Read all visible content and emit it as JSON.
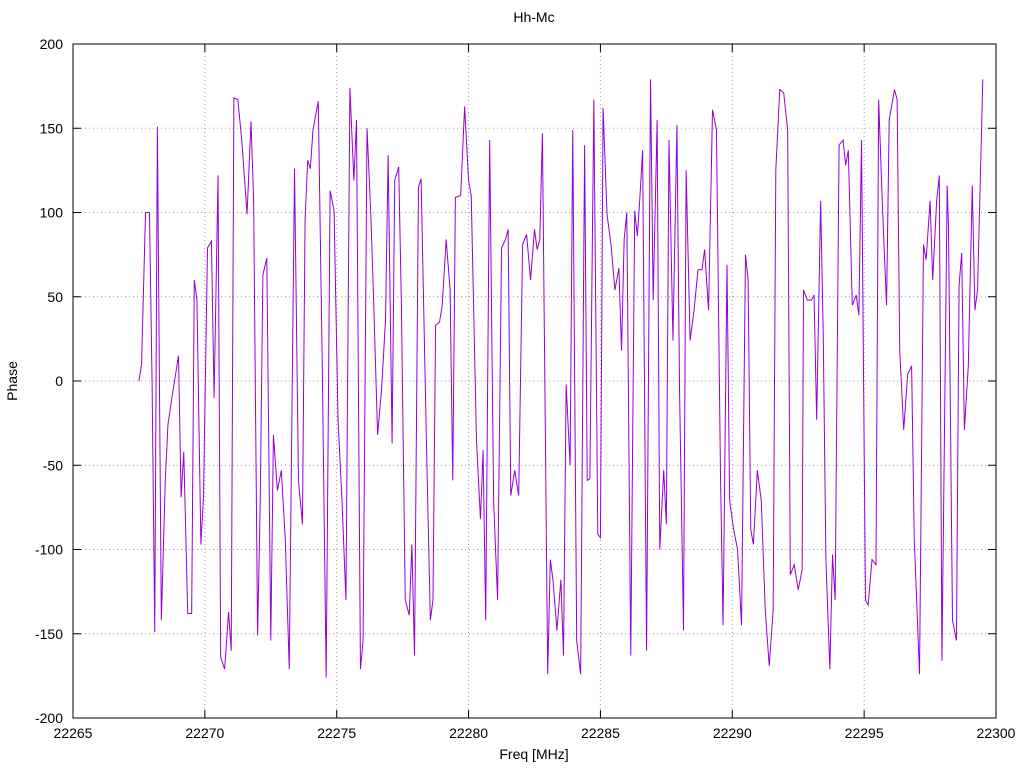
{
  "chart_data": {
    "type": "line",
    "title": "Hh-Mc",
    "x_label": "Freq [MHz]",
    "y_label": "Phase",
    "xlim": [
      22265,
      22300
    ],
    "xticks": [
      22265,
      22270,
      22275,
      22280,
      22285,
      22290,
      22295,
      22300
    ],
    "ylim": [
      -200,
      200
    ],
    "yticks": [
      -200,
      -150,
      -100,
      -50,
      0,
      50,
      100,
      150,
      200
    ],
    "grid": true,
    "x": [
      22267.5,
      22267.6,
      22267.75,
      22267.9,
      22268.0,
      22268.1,
      22268.2,
      22268.35,
      22268.5,
      22268.6,
      22268.75,
      22269.0,
      22269.1,
      22269.2,
      22269.35,
      22269.5,
      22269.6,
      22269.7,
      22269.85,
      22269.95,
      22270.1,
      22270.25,
      22270.35,
      22270.5,
      22270.6,
      22270.75,
      22270.9,
      22271.0,
      22271.1,
      22271.25,
      22271.4,
      22271.6,
      22271.75,
      22271.85,
      22272.0,
      22272.1,
      22272.2,
      22272.35,
      22272.5,
      22272.6,
      22272.75,
      22272.9,
      22273.05,
      22273.2,
      22273.4,
      22273.55,
      22273.7,
      22273.8,
      22273.9,
      22274.0,
      22274.1,
      22274.3,
      22274.45,
      22274.6,
      22274.75,
      22274.9,
      22275.05,
      22275.2,
      22275.35,
      22275.5,
      22275.65,
      22275.75,
      22275.9,
      22276.0,
      22276.15,
      22276.3,
      22276.4,
      22276.55,
      22276.7,
      22276.85,
      22276.95,
      22277.1,
      22277.2,
      22277.35,
      22277.45,
      22277.6,
      22277.75,
      22277.85,
      22277.95,
      22278.1,
      22278.2,
      22278.4,
      22278.55,
      22278.65,
      22278.75,
      22278.9,
      22279.0,
      22279.15,
      22279.3,
      22279.4,
      22279.5,
      22279.7,
      22279.85,
      22280.0,
      22280.1,
      22280.3,
      22280.45,
      22280.55,
      22280.65,
      22280.8,
      22280.95,
      22281.1,
      22281.25,
      22281.4,
      22281.5,
      22281.6,
      22281.75,
      22281.9,
      22282.05,
      22282.2,
      22282.35,
      22282.5,
      22282.6,
      22282.7,
      22282.8,
      22283.0,
      22283.1,
      22283.2,
      22283.35,
      22283.5,
      22283.6,
      22283.7,
      22283.85,
      22283.95,
      22284.1,
      22284.25,
      22284.4,
      22284.5,
      22284.6,
      22284.75,
      22284.9,
      22285.0,
      22285.1,
      22285.25,
      22285.4,
      22285.55,
      22285.7,
      22285.8,
      22285.9,
      22286.0,
      22286.15,
      22286.3,
      22286.4,
      22286.5,
      22286.6,
      22286.75,
      22286.9,
      22287.0,
      22287.15,
      22287.25,
      22287.4,
      22287.5,
      22287.6,
      22287.75,
      22287.9,
      22288.0,
      22288.15,
      22288.25,
      22288.4,
      22288.55,
      22288.7,
      22288.85,
      22288.95,
      22289.1,
      22289.25,
      22289.4,
      22289.55,
      22289.65,
      22289.8,
      22289.9,
      22290.05,
      22290.2,
      22290.35,
      22290.5,
      22290.6,
      22290.7,
      22290.8,
      22290.95,
      22291.1,
      22291.25,
      22291.4,
      22291.55,
      22291.65,
      22291.8,
      22291.95,
      22292.1,
      22292.2,
      22292.35,
      22292.5,
      22292.65,
      22292.7,
      22292.85,
      22293.0,
      22293.1,
      22293.2,
      22293.35,
      22293.45,
      22293.55,
      22293.7,
      22293.8,
      22293.9,
      22294.05,
      22294.2,
      22294.3,
      22294.4,
      22294.55,
      22294.7,
      22294.8,
      22294.9,
      22295.05,
      22295.15,
      22295.3,
      22295.45,
      22295.55,
      22295.7,
      22295.85,
      22295.95,
      22296.15,
      22296.25,
      22296.35,
      22296.5,
      22296.65,
      22296.8,
      22296.9,
      22297.1,
      22297.25,
      22297.35,
      22297.5,
      22297.6,
      22297.75,
      22297.85,
      22297.95,
      22298.15,
      22298.2,
      22298.35,
      22298.5,
      22298.6,
      22298.7,
      22298.8,
      22298.95,
      22299.1,
      22299.2,
      22299.3,
      22299.5
    ],
    "series": [
      {
        "color": "#9400d3",
        "values": [
          0,
          10,
          100,
          100,
          -2,
          -149,
          151,
          -142,
          -59,
          -26,
          -10,
          15,
          -69,
          -42,
          -138,
          -138,
          60,
          48,
          -97,
          -68,
          79,
          83,
          -10,
          122,
          -164,
          -171,
          -137,
          -160,
          168,
          167,
          143,
          99,
          154,
          107,
          -151,
          -71,
          63,
          73,
          -154,
          -32,
          -65,
          -53,
          -94,
          -171,
          126,
          -59,
          -85,
          96,
          131,
          126,
          149,
          166,
          12,
          -176,
          113,
          101,
          -23,
          -71,
          -130,
          174,
          119,
          155,
          -171,
          -154,
          150,
          96,
          48,
          -32,
          -5,
          36,
          134,
          -37,
          119,
          127,
          48,
          -130,
          -139,
          -97,
          -163,
          115,
          120,
          -35,
          -142,
          -130,
          33,
          35,
          45,
          84,
          54,
          -59,
          109,
          110,
          163,
          119,
          110,
          -35,
          -82,
          -41,
          -142,
          143,
          -71,
          -130,
          79,
          84,
          90,
          -68,
          -53,
          -68,
          81,
          87,
          60,
          90,
          78,
          84,
          147,
          -174,
          -106,
          -118,
          -148,
          -118,
          -163,
          -2,
          -50,
          149,
          -154,
          -174,
          140,
          -59,
          -58,
          167,
          -91,
          -93,
          162,
          99,
          81,
          54,
          67,
          18,
          84,
          100,
          -163,
          101,
          86,
          110,
          137,
          -160,
          179,
          48,
          155,
          -100,
          -53,
          -85,
          143,
          24,
          152,
          -5,
          -148,
          125,
          24,
          42,
          66,
          66,
          78,
          42,
          161,
          149,
          -53,
          -145,
          69,
          -71,
          -88,
          -100,
          -145,
          75,
          60,
          -88,
          -97,
          -53,
          -71,
          -136,
          -169,
          -136,
          125,
          173,
          171,
          149,
          -115,
          -109,
          -124,
          -112,
          54,
          48,
          48,
          51,
          -23,
          107,
          27,
          -106,
          -171,
          -103,
          -130,
          140,
          143,
          128,
          137,
          45,
          51,
          39,
          143,
          -130,
          -133,
          -106,
          -109,
          167,
          101,
          45,
          155,
          173,
          167,
          18,
          -29,
          4,
          9,
          -94,
          -174,
          81,
          72,
          107,
          60,
          107,
          122,
          -166,
          116,
          90,
          -142,
          -154,
          57,
          76,
          -29,
          9,
          116,
          42,
          54,
          179
        ]
      }
    ]
  }
}
